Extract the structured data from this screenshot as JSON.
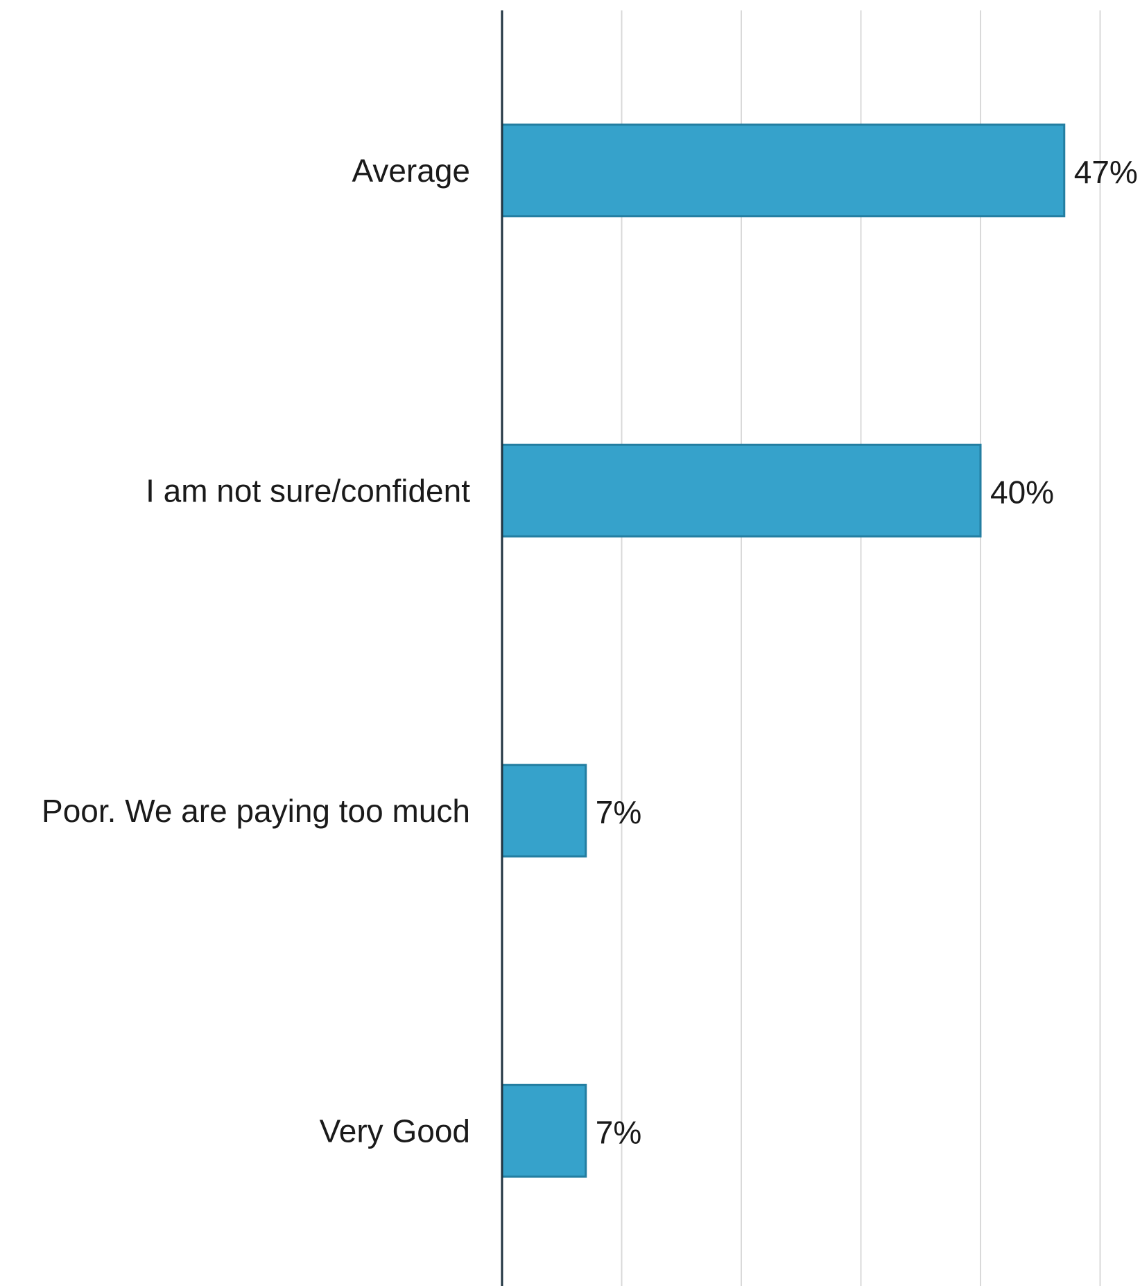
{
  "chart_data": {
    "type": "bar",
    "orientation": "horizontal",
    "categories": [
      "Average",
      "I am not sure/confident",
      "Poor. We are paying too much",
      "Very Good"
    ],
    "values": [
      47,
      40,
      7,
      7
    ],
    "value_labels": [
      "47%",
      "40%",
      "7%",
      "7%"
    ],
    "title": "",
    "xlabel": "",
    "ylabel": "",
    "xlim": [
      0,
      50
    ],
    "grid": true,
    "legend": "none",
    "colors": {
      "bar_fill": "#36a2cb",
      "bar_stroke": "#237ea1",
      "grid": "#d9d9d9",
      "axis": "#1f3340",
      "text": "#1a1a1a"
    }
  }
}
